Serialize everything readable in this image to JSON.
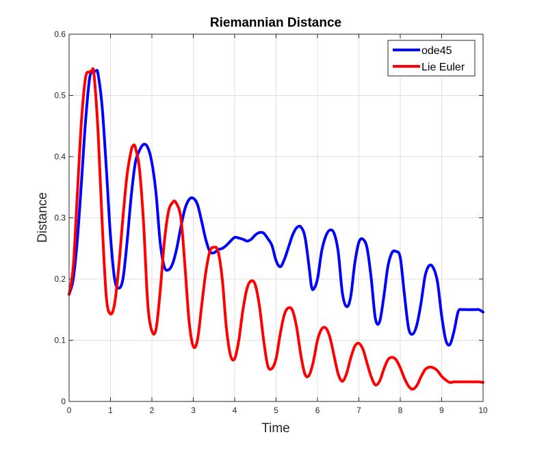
{
  "chart_data": {
    "type": "line",
    "title": "Riemannian Distance",
    "xlabel": "Time",
    "ylabel": "Distance",
    "xlim": [
      0,
      10
    ],
    "ylim": [
      0,
      0.6
    ],
    "xticks": [
      0,
      1,
      2,
      3,
      4,
      5,
      6,
      7,
      8,
      9,
      10
    ],
    "yticks": [
      0,
      0.1,
      0.2,
      0.3,
      0.4,
      0.5,
      0.6
    ],
    "xtick_labels": [
      "0",
      "1",
      "2",
      "3",
      "4",
      "5",
      "6",
      "7",
      "8",
      "9",
      "10"
    ],
    "ytick_labels": [
      "0",
      "0.1",
      "0.2",
      "0.3",
      "0.4",
      "0.5",
      "0.6"
    ],
    "grid": true,
    "legend": "top-right",
    "series": [
      {
        "name": "ode45",
        "color": "#0000ff",
        "x": [
          0,
          0.1,
          0.2,
          0.3,
          0.4,
          0.5,
          0.6,
          0.65,
          0.7,
          0.8,
          0.9,
          1.0,
          1.1,
          1.2,
          1.3,
          1.4,
          1.5,
          1.6,
          1.7,
          1.8,
          1.9,
          2.0,
          2.1,
          2.2,
          2.3,
          2.4,
          2.5,
          2.6,
          2.7,
          2.8,
          2.9,
          3.0,
          3.1,
          3.2,
          3.3,
          3.4,
          3.5,
          3.6,
          3.7,
          3.8,
          3.9,
          4.0,
          4.1,
          4.2,
          4.3,
          4.4,
          4.5,
          4.6,
          4.7,
          4.8,
          4.9,
          5.0,
          5.1,
          5.2,
          5.3,
          5.4,
          5.5,
          5.6,
          5.7,
          5.8,
          5.85,
          5.9,
          6.0,
          6.1,
          6.2,
          6.3,
          6.4,
          6.5,
          6.6,
          6.7,
          6.8,
          6.9,
          7.0,
          7.1,
          7.2,
          7.3,
          7.4,
          7.5,
          7.6,
          7.7,
          7.8,
          7.9,
          8.0,
          8.1,
          8.2,
          8.3,
          8.4,
          8.5,
          8.6,
          8.7,
          8.8,
          8.9,
          9.0,
          9.1,
          9.2,
          9.3,
          9.4,
          9.5,
          9.6,
          9.7,
          9.8,
          9.9,
          10.0
        ],
        "y": [
          0.175,
          0.2,
          0.265,
          0.36,
          0.46,
          0.53,
          0.538,
          0.54,
          0.535,
          0.48,
          0.38,
          0.27,
          0.2,
          0.185,
          0.2,
          0.26,
          0.335,
          0.39,
          0.41,
          0.42,
          0.415,
          0.39,
          0.34,
          0.26,
          0.22,
          0.215,
          0.225,
          0.25,
          0.285,
          0.315,
          0.33,
          0.332,
          0.322,
          0.295,
          0.265,
          0.245,
          0.243,
          0.248,
          0.25,
          0.255,
          0.262,
          0.268,
          0.267,
          0.265,
          0.262,
          0.265,
          0.272,
          0.276,
          0.275,
          0.266,
          0.255,
          0.23,
          0.22,
          0.232,
          0.252,
          0.272,
          0.284,
          0.285,
          0.268,
          0.218,
          0.19,
          0.183,
          0.2,
          0.245,
          0.27,
          0.28,
          0.275,
          0.245,
          0.178,
          0.155,
          0.17,
          0.225,
          0.26,
          0.265,
          0.25,
          0.2,
          0.135,
          0.13,
          0.17,
          0.22,
          0.243,
          0.245,
          0.235,
          0.175,
          0.12,
          0.11,
          0.125,
          0.16,
          0.205,
          0.222,
          0.218,
          0.195,
          0.14,
          0.1,
          0.093,
          0.115,
          0.147,
          0.15,
          0.15,
          0.15,
          0.15,
          0.15,
          0.146
        ]
      },
      {
        "name": "Lie Euler",
        "color": "#ff0000",
        "x": [
          0,
          0.1,
          0.2,
          0.3,
          0.4,
          0.5,
          0.55,
          0.6,
          0.7,
          0.8,
          0.9,
          1.0,
          1.1,
          1.2,
          1.3,
          1.4,
          1.5,
          1.55,
          1.6,
          1.7,
          1.8,
          1.9,
          2.0,
          2.1,
          2.2,
          2.3,
          2.4,
          2.5,
          2.58,
          2.7,
          2.8,
          2.9,
          3.0,
          3.1,
          3.2,
          3.3,
          3.4,
          3.5,
          3.6,
          3.7,
          3.8,
          3.9,
          4.0,
          4.1,
          4.2,
          4.3,
          4.4,
          4.5,
          4.6,
          4.7,
          4.8,
          4.9,
          5.0,
          5.1,
          5.2,
          5.3,
          5.4,
          5.5,
          5.6,
          5.7,
          5.8,
          5.9,
          6.0,
          6.1,
          6.2,
          6.3,
          6.4,
          6.5,
          6.6,
          6.7,
          6.8,
          6.9,
          7.0,
          7.1,
          7.2,
          7.3,
          7.4,
          7.5,
          7.6,
          7.7,
          7.8,
          7.9,
          8.0,
          8.1,
          8.2,
          8.3,
          8.4,
          8.5,
          8.6,
          8.7,
          8.8,
          8.9,
          9.0,
          9.1,
          9.2,
          9.3,
          9.4,
          9.5,
          9.6,
          9.7,
          9.8,
          9.9,
          10.0
        ],
        "y": [
          0.175,
          0.22,
          0.34,
          0.46,
          0.53,
          0.538,
          0.54,
          0.535,
          0.44,
          0.29,
          0.17,
          0.143,
          0.16,
          0.22,
          0.3,
          0.37,
          0.41,
          0.418,
          0.415,
          0.38,
          0.29,
          0.16,
          0.115,
          0.118,
          0.18,
          0.26,
          0.31,
          0.325,
          0.325,
          0.3,
          0.22,
          0.13,
          0.09,
          0.1,
          0.155,
          0.21,
          0.245,
          0.252,
          0.245,
          0.2,
          0.12,
          0.075,
          0.07,
          0.1,
          0.15,
          0.185,
          0.197,
          0.19,
          0.155,
          0.1,
          0.058,
          0.054,
          0.07,
          0.11,
          0.142,
          0.153,
          0.148,
          0.12,
          0.075,
          0.044,
          0.043,
          0.065,
          0.1,
          0.118,
          0.12,
          0.105,
          0.075,
          0.045,
          0.033,
          0.045,
          0.07,
          0.09,
          0.095,
          0.085,
          0.062,
          0.04,
          0.027,
          0.033,
          0.052,
          0.068,
          0.072,
          0.068,
          0.055,
          0.038,
          0.025,
          0.02,
          0.026,
          0.04,
          0.052,
          0.056,
          0.055,
          0.05,
          0.041,
          0.035,
          0.031,
          0.032,
          0.032,
          0.032,
          0.032,
          0.032,
          0.032,
          0.032,
          0.031
        ]
      }
    ]
  }
}
